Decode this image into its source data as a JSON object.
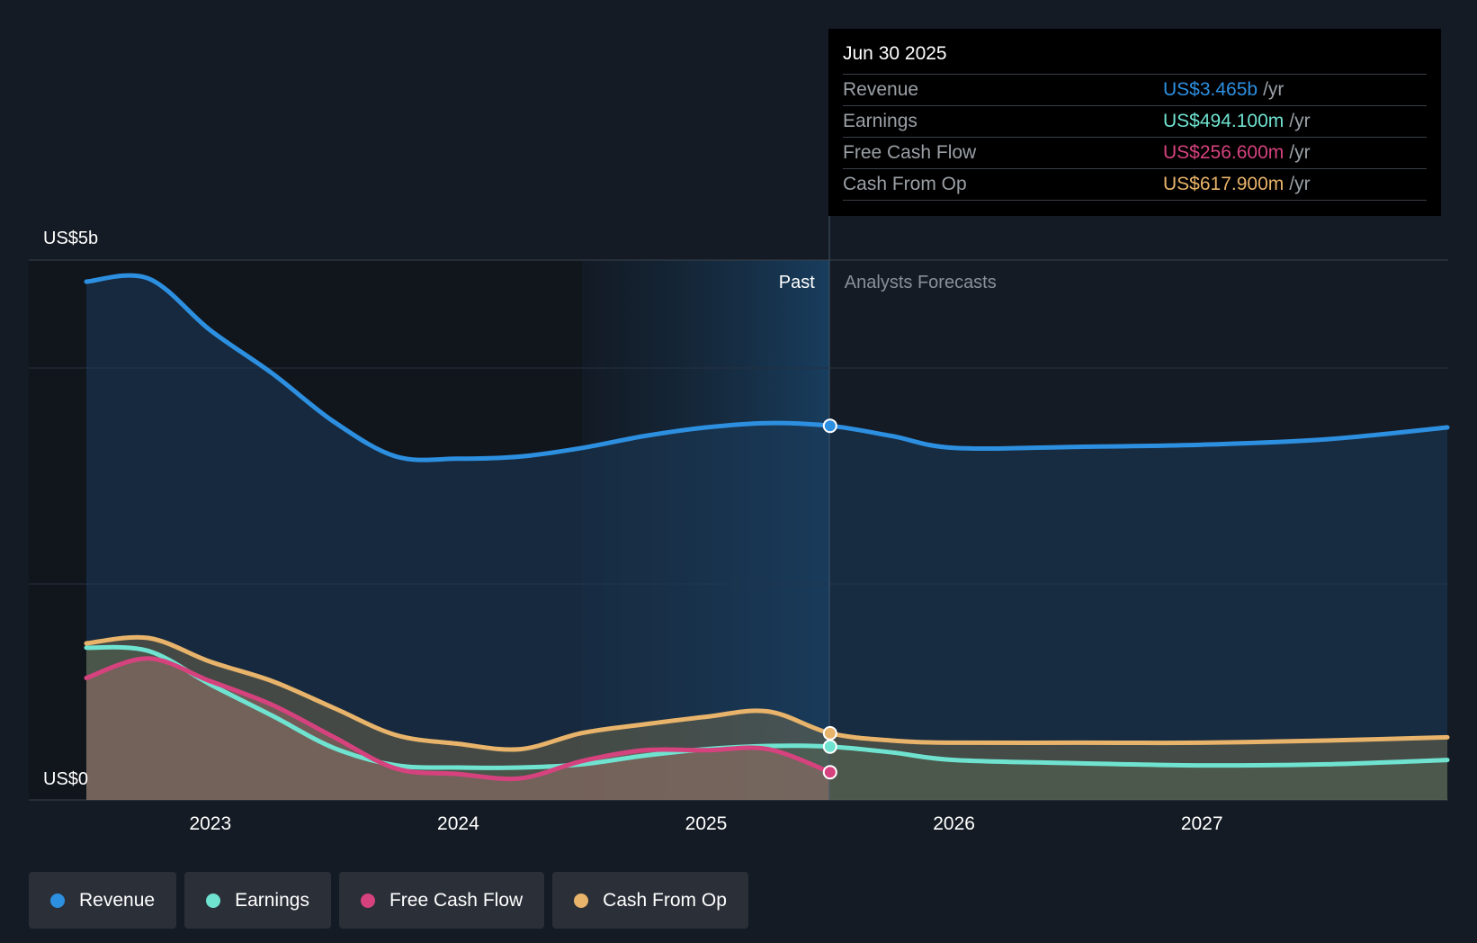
{
  "chart_data": {
    "type": "area",
    "y_top_label": "US$5b",
    "y_bottom_label": "US$0",
    "ylim": [
      0,
      5
    ],
    "y_unit": "US$ billions",
    "x_ticks": [
      "2023",
      "2024",
      "2025",
      "2026",
      "2027"
    ],
    "x_range": [
      2022.5,
      2027.99
    ],
    "past_label": "Past",
    "forecast_label": "Analysts Forecasts",
    "divider_x": 2025.5,
    "series": [
      {
        "name": "Revenue",
        "color": "#2d8fe0",
        "x": [
          2022.5,
          2022.75,
          2023.0,
          2023.25,
          2023.5,
          2023.75,
          2024.0,
          2024.25,
          2024.5,
          2024.75,
          2025.0,
          2025.25,
          2025.5,
          2025.75,
          2026.0,
          2026.5,
          2027.0,
          2027.5,
          2027.99
        ],
        "values": [
          4.8,
          4.83,
          4.35,
          3.95,
          3.5,
          3.18,
          3.16,
          3.18,
          3.26,
          3.37,
          3.45,
          3.49,
          3.465,
          3.37,
          3.26,
          3.27,
          3.29,
          3.34,
          3.45
        ]
      },
      {
        "name": "Earnings",
        "color": "#6fe3d0",
        "x": [
          2022.5,
          2022.75,
          2023.0,
          2023.25,
          2023.5,
          2023.75,
          2024.0,
          2024.25,
          2024.5,
          2024.75,
          2025.0,
          2025.25,
          2025.5,
          2025.75,
          2026.0,
          2026.5,
          2027.0,
          2027.5,
          2027.99
        ],
        "values": [
          1.41,
          1.38,
          1.07,
          0.78,
          0.48,
          0.32,
          0.3,
          0.3,
          0.33,
          0.41,
          0.47,
          0.5,
          0.494,
          0.44,
          0.37,
          0.34,
          0.32,
          0.33,
          0.37
        ]
      },
      {
        "name": "Free Cash Flow",
        "color": "#d6427e",
        "x": [
          2022.5,
          2022.75,
          2023.0,
          2023.25,
          2023.5,
          2023.75,
          2024.0,
          2024.25,
          2024.5,
          2024.75,
          2025.0,
          2025.25,
          2025.5
        ],
        "values": [
          1.13,
          1.31,
          1.1,
          0.88,
          0.58,
          0.29,
          0.24,
          0.2,
          0.36,
          0.46,
          0.46,
          0.47,
          0.2566
        ]
      },
      {
        "name": "Cash From Op",
        "color": "#e8b36a",
        "x": [
          2022.5,
          2022.75,
          2023.0,
          2023.25,
          2023.5,
          2023.75,
          2024.0,
          2024.25,
          2024.5,
          2024.75,
          2025.0,
          2025.25,
          2025.5,
          2025.75,
          2026.0,
          2026.5,
          2027.0,
          2027.5,
          2027.99
        ],
        "values": [
          1.45,
          1.5,
          1.28,
          1.1,
          0.85,
          0.6,
          0.52,
          0.47,
          0.62,
          0.7,
          0.77,
          0.82,
          0.6179,
          0.55,
          0.53,
          0.53,
          0.53,
          0.55,
          0.58
        ]
      }
    ]
  },
  "tooltip": {
    "date": "Jun 30 2025",
    "rows": [
      {
        "label": "Revenue",
        "value": "US$3.465b",
        "unit": "/yr",
        "color": "#2d8fe0"
      },
      {
        "label": "Earnings",
        "value": "US$494.100m",
        "unit": "/yr",
        "color": "#6fe3d0"
      },
      {
        "label": "Free Cash Flow",
        "value": "US$256.600m",
        "unit": "/yr",
        "color": "#d6427e"
      },
      {
        "label": "Cash From Op",
        "value": "US$617.900m",
        "unit": "/yr",
        "color": "#e8b36a"
      }
    ]
  },
  "legend": [
    {
      "label": "Revenue",
      "color": "#2d8fe0"
    },
    {
      "label": "Earnings",
      "color": "#6fe3d0"
    },
    {
      "label": "Free Cash Flow",
      "color": "#d6427e"
    },
    {
      "label": "Cash From Op",
      "color": "#e8b36a"
    }
  ]
}
